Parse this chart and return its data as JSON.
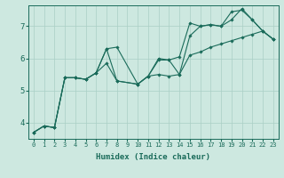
{
  "xlabel": "Humidex (Indice chaleur)",
  "ylabel": "",
  "background_color": "#cde8e0",
  "line_color": "#1a6b5a",
  "xlim": [
    -0.5,
    23.5
  ],
  "ylim": [
    3.5,
    7.65
  ],
  "xticks": [
    0,
    1,
    2,
    3,
    4,
    5,
    6,
    7,
    8,
    9,
    10,
    11,
    12,
    13,
    14,
    15,
    16,
    17,
    18,
    19,
    20,
    21,
    22,
    23
  ],
  "yticks": [
    4,
    5,
    6,
    7
  ],
  "series": [
    {
      "x": [
        0,
        1,
        2,
        3,
        4,
        5,
        6,
        7,
        8,
        10,
        11,
        12,
        13,
        14,
        15,
        16,
        17,
        18,
        19,
        20,
        21,
        22,
        23
      ],
      "y": [
        3.7,
        3.9,
        3.85,
        5.4,
        5.4,
        5.35,
        5.55,
        6.3,
        6.35,
        5.2,
        5.45,
        6.0,
        5.95,
        6.05,
        7.1,
        7.0,
        7.05,
        7.0,
        7.45,
        7.5,
        7.2,
        6.85,
        6.6
      ]
    },
    {
      "x": [
        0,
        1,
        2,
        3,
        4,
        5,
        6,
        7,
        8,
        10,
        11,
        12,
        13,
        14,
        15,
        16,
        17,
        18,
        19,
        20,
        21,
        22,
        23
      ],
      "y": [
        3.7,
        3.9,
        3.85,
        5.4,
        5.4,
        5.35,
        5.55,
        6.3,
        5.3,
        5.2,
        5.45,
        5.95,
        5.95,
        5.5,
        6.7,
        7.0,
        7.05,
        7.0,
        7.2,
        7.55,
        7.2,
        6.85,
        6.6
      ]
    },
    {
      "x": [
        0,
        1,
        2,
        3,
        4,
        5,
        6,
        7,
        8,
        10,
        11,
        12,
        13,
        14,
        15,
        16,
        17,
        18,
        19,
        20,
        21,
        22,
        23
      ],
      "y": [
        3.7,
        3.9,
        3.85,
        5.4,
        5.4,
        5.35,
        5.55,
        5.85,
        5.3,
        5.2,
        5.45,
        5.5,
        5.45,
        5.5,
        6.1,
        6.2,
        6.35,
        6.45,
        6.55,
        6.65,
        6.75,
        6.85,
        6.6
      ]
    }
  ],
  "grid_color": "#aacfc5",
  "marker": "D",
  "markersize": 1.8,
  "linewidth": 0.8,
  "xlabel_fontsize": 6.5,
  "xlabel_fontweight": "bold",
  "xtick_fontsize": 5.0,
  "ytick_fontsize": 6.5
}
